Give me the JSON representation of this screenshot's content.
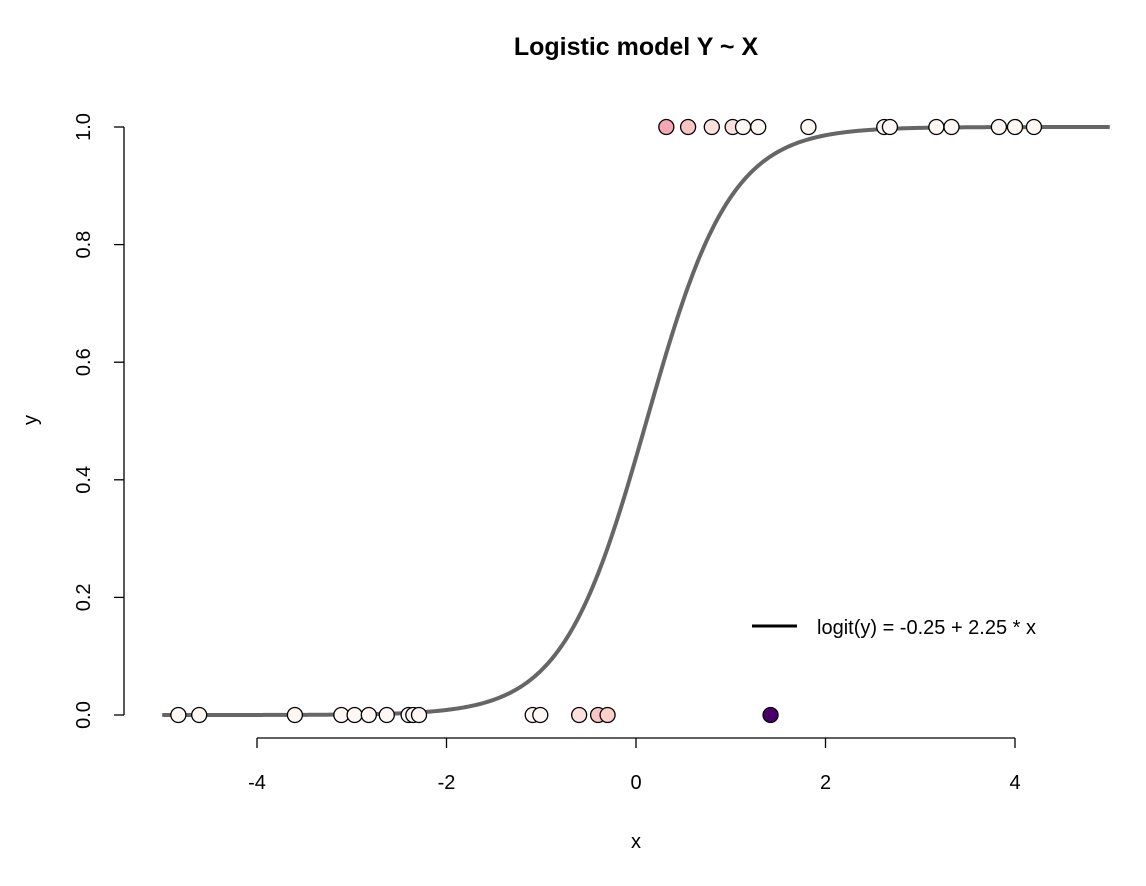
{
  "chart_data": {
    "type": "scatter",
    "title": "Logistic model Y ~ X",
    "xlabel": "x",
    "ylabel": "y",
    "xlim": [
      -5,
      5
    ],
    "ylim": [
      0,
      1
    ],
    "x_ticks": [
      -4,
      -2,
      0,
      2,
      4
    ],
    "x_tick_labels": [
      "-4",
      "-2",
      "0",
      "2",
      "4"
    ],
    "y_ticks": [
      0.0,
      0.2,
      0.4,
      0.6,
      0.8,
      1.0
    ],
    "y_tick_labels": [
      "0.0",
      "0.2",
      "0.4",
      "0.6",
      "0.8",
      "1.0"
    ],
    "grid": false,
    "legend": {
      "placement": "bottom-right",
      "entries": [
        {
          "label": "logit(y) = -0.25 + 2.25 * x",
          "color": "#000000",
          "marker": "line"
        }
      ]
    },
    "curve": {
      "type": "logistic",
      "intercept": -0.25,
      "slope": 2.25,
      "color": "#666666",
      "x_range": [
        -5,
        5
      ]
    },
    "series": [
      {
        "values": [
          {
            "x": -4.83,
            "y": 0,
            "fill": "#FFF7F3"
          },
          {
            "x": -4.61,
            "y": 0,
            "fill": "#FFF7F3"
          },
          {
            "x": -3.6,
            "y": 0,
            "fill": "#FFF7F3"
          },
          {
            "x": -3.11,
            "y": 0,
            "fill": "#FFF7F3"
          },
          {
            "x": -2.97,
            "y": 0,
            "fill": "#FFF7F3"
          },
          {
            "x": -2.82,
            "y": 0,
            "fill": "#FFF7F3"
          },
          {
            "x": -2.63,
            "y": 0,
            "fill": "#FFF7F3"
          },
          {
            "x": -2.4,
            "y": 0,
            "fill": "#FFF7F3"
          },
          {
            "x": -2.35,
            "y": 0,
            "fill": "#FFF7F3"
          },
          {
            "x": -2.29,
            "y": 0,
            "fill": "#FFF7F3"
          },
          {
            "x": -1.09,
            "y": 0,
            "fill": "#FFF7F3"
          },
          {
            "x": -1.01,
            "y": 0,
            "fill": "#FFF7F3"
          },
          {
            "x": -0.6,
            "y": 0,
            "fill": "#FDE0DD"
          },
          {
            "x": -0.4,
            "y": 0,
            "fill": "#FBC4C4"
          },
          {
            "x": -0.3,
            "y": 0,
            "fill": "#FCCFCB"
          },
          {
            "x": 1.42,
            "y": 0,
            "fill": "#49006A"
          },
          {
            "x": 0.32,
            "y": 1,
            "fill": "#F7A6B6"
          },
          {
            "x": 0.55,
            "y": 1,
            "fill": "#FBC4C4"
          },
          {
            "x": 0.8,
            "y": 1,
            "fill": "#FDE0DD"
          },
          {
            "x": 1.02,
            "y": 1,
            "fill": "#FDE0DD"
          },
          {
            "x": 1.13,
            "y": 1,
            "fill": "#FFF7F3"
          },
          {
            "x": 1.29,
            "y": 1,
            "fill": "#FFF7F3"
          },
          {
            "x": 1.82,
            "y": 1,
            "fill": "#FFF7F3"
          },
          {
            "x": 2.62,
            "y": 1,
            "fill": "#FFF7F3"
          },
          {
            "x": 2.68,
            "y": 1,
            "fill": "#FFF7F3"
          },
          {
            "x": 3.17,
            "y": 1,
            "fill": "#FFF7F3"
          },
          {
            "x": 3.33,
            "y": 1,
            "fill": "#FFF7F3"
          },
          {
            "x": 3.83,
            "y": 1,
            "fill": "#FFF7F3"
          },
          {
            "x": 4.0,
            "y": 1,
            "fill": "#FFF7F3"
          },
          {
            "x": 4.2,
            "y": 1,
            "fill": "#FFF7F3"
          }
        ]
      }
    ]
  }
}
